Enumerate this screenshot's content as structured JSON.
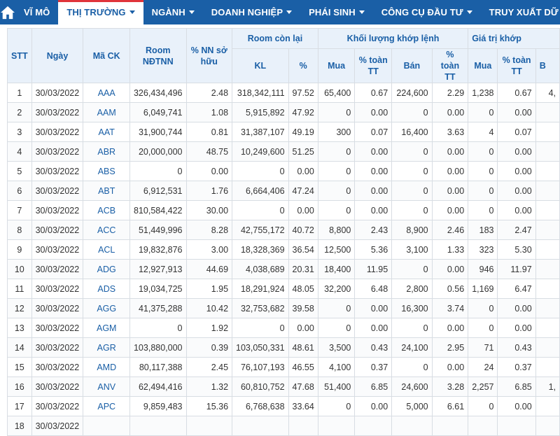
{
  "nav": {
    "home_icon": "home-icon",
    "items": [
      {
        "label": "VĨ MÔ",
        "caret": false,
        "active": false
      },
      {
        "label": "THỊ TRƯỜNG",
        "caret": true,
        "active": true
      },
      {
        "label": "NGÀNH",
        "caret": true,
        "active": false
      },
      {
        "label": "DOANH NGHIỆP",
        "caret": true,
        "active": false
      },
      {
        "label": "PHÁI SINH",
        "caret": true,
        "active": false
      },
      {
        "label": "CÔNG CỤ ĐẦU TƯ",
        "caret": true,
        "active": false
      },
      {
        "label": "TRUY XUẤT DỮ LIỆU",
        "caret": false,
        "active": false
      }
    ],
    "colors": {
      "bar": "#1a5fa6",
      "active_border": "#e0343a"
    }
  },
  "table": {
    "headers": {
      "stt": "STT",
      "date": "Ngày",
      "code": "Mã CK",
      "room": "Room NĐTNN",
      "foreign_pct": "% NN sở hữu",
      "room_left": "Room còn lại",
      "room_left_kl": "KL",
      "room_left_pct": "%",
      "volume": "Khối lượng khớp lệnh",
      "value": "Giá trị khớp",
      "buy": "Mua",
      "pct_total": "% toàn TT",
      "sell": "Bán",
      "sell_short": "B"
    },
    "rows": [
      [
        "1",
        "30/03/2022",
        "AAA",
        "326,434,496",
        "2.48",
        "318,342,111",
        "97.52",
        "65,400",
        "0.67",
        "224,600",
        "2.29",
        "1,238",
        "0.67",
        "4,"
      ],
      [
        "2",
        "30/03/2022",
        "AAM",
        "6,049,741",
        "1.08",
        "5,915,892",
        "47.92",
        "0",
        "0.00",
        "0",
        "0.00",
        "0",
        "0.00",
        ""
      ],
      [
        "3",
        "30/03/2022",
        "AAT",
        "31,900,744",
        "0.81",
        "31,387,107",
        "49.19",
        "300",
        "0.07",
        "16,400",
        "3.63",
        "4",
        "0.07",
        ""
      ],
      [
        "4",
        "30/03/2022",
        "ABR",
        "20,000,000",
        "48.75",
        "10,249,600",
        "51.25",
        "0",
        "0.00",
        "0",
        "0.00",
        "0",
        "0.00",
        ""
      ],
      [
        "5",
        "30/03/2022",
        "ABS",
        "0",
        "0.00",
        "0",
        "0.00",
        "0",
        "0.00",
        "0",
        "0.00",
        "0",
        "0.00",
        ""
      ],
      [
        "6",
        "30/03/2022",
        "ABT",
        "6,912,531",
        "1.76",
        "6,664,406",
        "47.24",
        "0",
        "0.00",
        "0",
        "0.00",
        "0",
        "0.00",
        ""
      ],
      [
        "7",
        "30/03/2022",
        "ACB",
        "810,584,422",
        "30.00",
        "0",
        "0.00",
        "0",
        "0.00",
        "0",
        "0.00",
        "0",
        "0.00",
        ""
      ],
      [
        "8",
        "30/03/2022",
        "ACC",
        "51,449,996",
        "8.28",
        "42,755,172",
        "40.72",
        "8,800",
        "2.43",
        "8,900",
        "2.46",
        "183",
        "2.47",
        ""
      ],
      [
        "9",
        "30/03/2022",
        "ACL",
        "19,832,876",
        "3.00",
        "18,328,369",
        "36.54",
        "12,500",
        "5.36",
        "3,100",
        "1.33",
        "323",
        "5.30",
        ""
      ],
      [
        "10",
        "30/03/2022",
        "ADG",
        "12,927,913",
        "44.69",
        "4,038,689",
        "20.31",
        "18,400",
        "11.95",
        "0",
        "0.00",
        "946",
        "11.97",
        ""
      ],
      [
        "11",
        "30/03/2022",
        "ADS",
        "19,034,725",
        "1.95",
        "18,291,924",
        "48.05",
        "32,200",
        "6.48",
        "2,800",
        "0.56",
        "1,169",
        "6.47",
        ""
      ],
      [
        "12",
        "30/03/2022",
        "AGG",
        "41,375,288",
        "10.42",
        "32,753,682",
        "39.58",
        "0",
        "0.00",
        "16,300",
        "3.74",
        "0",
        "0.00",
        ""
      ],
      [
        "13",
        "30/03/2022",
        "AGM",
        "0",
        "1.92",
        "0",
        "0.00",
        "0",
        "0.00",
        "0",
        "0.00",
        "0",
        "0.00",
        ""
      ],
      [
        "14",
        "30/03/2022",
        "AGR",
        "103,880,000",
        "0.39",
        "103,050,331",
        "48.61",
        "3,500",
        "0.43",
        "24,100",
        "2.95",
        "71",
        "0.43",
        ""
      ],
      [
        "15",
        "30/03/2022",
        "AMD",
        "80,117,388",
        "2.45",
        "76,107,193",
        "46.55",
        "4,100",
        "0.37",
        "0",
        "0.00",
        "24",
        "0.37",
        ""
      ],
      [
        "16",
        "30/03/2022",
        "ANV",
        "62,494,416",
        "1.32",
        "60,810,752",
        "47.68",
        "51,400",
        "6.85",
        "24,600",
        "3.28",
        "2,257",
        "6.85",
        "1,"
      ],
      [
        "17",
        "30/03/2022",
        "APC",
        "9,859,483",
        "15.36",
        "6,768,638",
        "33.64",
        "0",
        "0.00",
        "5,000",
        "6.61",
        "0",
        "0.00",
        ""
      ],
      [
        "18",
        "30/03/2022",
        "",
        "",
        "",
        "",
        "",
        "",
        "",
        "",
        "",
        "",
        "",
        ""
      ]
    ]
  }
}
